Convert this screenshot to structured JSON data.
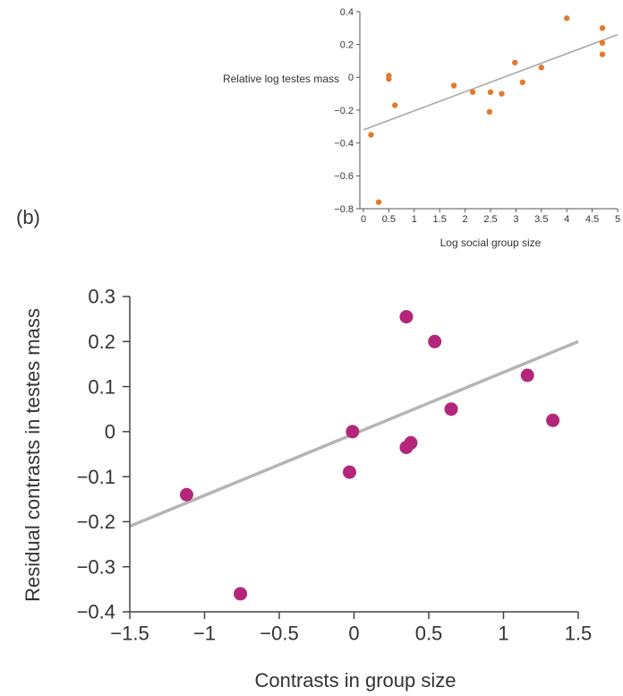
{
  "panel_b_label": "(b)",
  "chart_data": [
    {
      "type": "scatter",
      "title": "",
      "xlabel": "Log social group size",
      "ylabel": "Relative log testes mass",
      "xlim": [
        0,
        5
      ],
      "ylim": [
        -0.8,
        0.4
      ],
      "x_ticks": [
        0,
        0.5,
        1,
        1.5,
        2,
        2.5,
        3,
        3.5,
        4,
        4.5,
        5
      ],
      "x_tick_labels": [
        "0",
        "0.5",
        "1",
        "1.5",
        "2",
        "2.5",
        "3",
        "3.5",
        "4",
        "4.5",
        "5"
      ],
      "y_ticks": [
        0.4,
        0.2,
        0,
        -0.2,
        -0.4,
        -0.6,
        -0.8
      ],
      "y_tick_labels": [
        "0.4",
        "0.2",
        "0",
        "−0.2",
        "−0.4",
        "−0.6",
        "−0.8"
      ],
      "grid": false,
      "point_color": "#e07a2e",
      "line_color": "#a8a8a8",
      "points": [
        {
          "x": 0.15,
          "y": -0.35
        },
        {
          "x": 0.3,
          "y": -0.76
        },
        {
          "x": 0.5,
          "y": 0.01
        },
        {
          "x": 0.5,
          "y": -0.01
        },
        {
          "x": 0.62,
          "y": -0.17
        },
        {
          "x": 1.78,
          "y": -0.05
        },
        {
          "x": 2.15,
          "y": -0.09
        },
        {
          "x": 2.48,
          "y": -0.21
        },
        {
          "x": 2.5,
          "y": -0.09
        },
        {
          "x": 2.72,
          "y": -0.1
        },
        {
          "x": 2.98,
          "y": 0.09
        },
        {
          "x": 3.13,
          "y": -0.03
        },
        {
          "x": 3.5,
          "y": 0.06
        },
        {
          "x": 4.0,
          "y": 0.36
        },
        {
          "x": 4.7,
          "y": 0.3
        },
        {
          "x": 4.7,
          "y": 0.21
        },
        {
          "x": 4.7,
          "y": 0.14
        }
      ],
      "trend_line": {
        "x": [
          0,
          5
        ],
        "y": [
          -0.32,
          0.26
        ]
      }
    },
    {
      "type": "scatter",
      "title": "",
      "xlabel": "Contrasts in group size",
      "ylabel": "Residual contrasts in testes mass",
      "xlim": [
        -1.5,
        1.5
      ],
      "ylim": [
        -0.4,
        0.3
      ],
      "x_ticks": [
        -1.5,
        -1,
        -0.5,
        0,
        0.5,
        1,
        1.5
      ],
      "x_tick_labels": [
        "−1.5",
        "−1",
        "−0.5",
        "0",
        "0.5",
        "1",
        "1.5"
      ],
      "y_ticks": [
        0.3,
        0.2,
        0.1,
        0,
        -0.1,
        -0.2,
        -0.3,
        -0.4
      ],
      "y_tick_labels": [
        "0.3",
        "0.2",
        "0.1",
        "0",
        "−0.1",
        "−0.2",
        "−0.3",
        "−0.4"
      ],
      "grid": false,
      "point_color": "#b3267a",
      "line_color": "#b8b4b4",
      "points": [
        {
          "x": -1.12,
          "y": -0.14
        },
        {
          "x": -0.76,
          "y": -0.36
        },
        {
          "x": -0.03,
          "y": -0.09
        },
        {
          "x": -0.01,
          "y": 0.0
        },
        {
          "x": 0.35,
          "y": -0.035
        },
        {
          "x": 0.38,
          "y": -0.025
        },
        {
          "x": 0.35,
          "y": 0.255
        },
        {
          "x": 0.54,
          "y": 0.2
        },
        {
          "x": 0.65,
          "y": 0.05
        },
        {
          "x": 1.16,
          "y": 0.125
        },
        {
          "x": 1.33,
          "y": 0.025
        }
      ],
      "trend_line": {
        "x": [
          -1.5,
          1.5
        ],
        "y": [
          -0.21,
          0.2
        ]
      }
    }
  ]
}
